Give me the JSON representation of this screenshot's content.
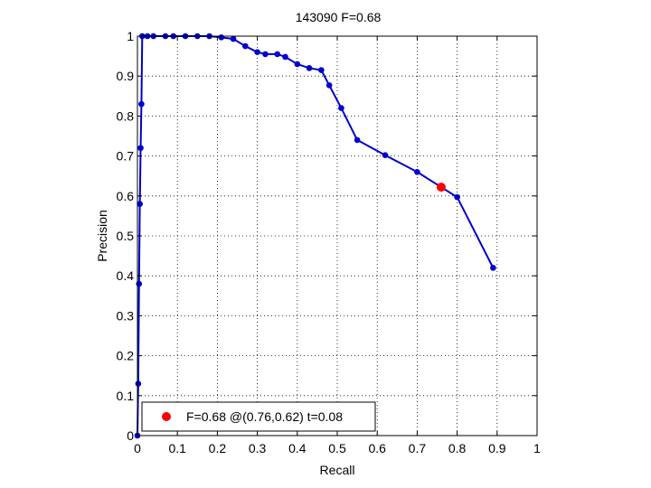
{
  "chart_data": {
    "type": "line",
    "title": "143090 F=0.68",
    "xlabel": "Recall",
    "ylabel": "Precision",
    "xlim": [
      0,
      1
    ],
    "ylim": [
      0,
      1
    ],
    "grid": true,
    "legend_position": "bottom-left",
    "xticks": [
      "0",
      "0.1",
      "0.2",
      "0.3",
      "0.4",
      "0.5",
      "0.6",
      "0.7",
      "0.8",
      "0.9",
      "1"
    ],
    "yticks": [
      "0",
      "0.1",
      "0.2",
      "0.3",
      "0.4",
      "0.5",
      "0.6",
      "0.7",
      "0.8",
      "0.9",
      "1"
    ],
    "series": [
      {
        "color": "#0000cc",
        "marker": "dot",
        "x": [
          0.0,
          0.002,
          0.004,
          0.006,
          0.008,
          0.01,
          0.012,
          0.025,
          0.04,
          0.07,
          0.09,
          0.12,
          0.15,
          0.18,
          0.21,
          0.24,
          0.27,
          0.3,
          0.32,
          0.35,
          0.37,
          0.4,
          0.43,
          0.46,
          0.48,
          0.51,
          0.55,
          0.62,
          0.7,
          0.76,
          0.8,
          0.89
        ],
        "y": [
          0.0,
          0.13,
          0.38,
          0.58,
          0.72,
          0.83,
          1.0,
          1.0,
          1.0,
          1.0,
          1.0,
          1.0,
          1.0,
          1.0,
          0.997,
          0.993,
          0.975,
          0.96,
          0.955,
          0.955,
          0.948,
          0.93,
          0.92,
          0.915,
          0.877,
          0.82,
          0.74,
          0.702,
          0.66,
          0.622,
          0.597,
          0.42
        ]
      }
    ],
    "best_point": {
      "x": 0.76,
      "y": 0.622,
      "color": "#ff0000"
    },
    "legend": {
      "label": "F=0.68 @(0.76,0.62) t=0.08",
      "color": "#ff0000"
    }
  }
}
